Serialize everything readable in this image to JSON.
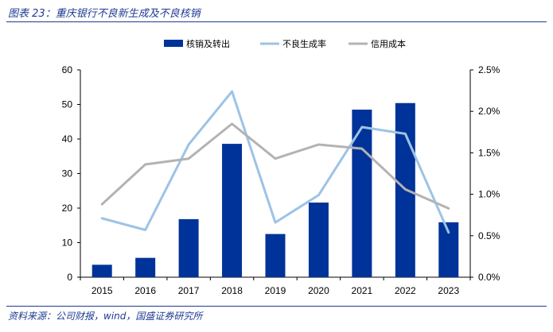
{
  "header": {
    "title": "图表 23：重庆银行不良新生成及不良核销"
  },
  "footer": {
    "source": "资料来源：公司财报，wind，国盛证券研究所"
  },
  "chart_data": {
    "type": "bar",
    "categories": [
      "2015",
      "2016",
      "2017",
      "2018",
      "2019",
      "2020",
      "2021",
      "2022",
      "2023"
    ],
    "series": [
      {
        "name": "核销及转出",
        "type": "bar",
        "axis": "left",
        "color": "#003399",
        "values": [
          3.6,
          5.6,
          16.8,
          38.6,
          12.5,
          21.6,
          48.5,
          50.4,
          15.9
        ]
      },
      {
        "name": "不良生成率",
        "type": "line",
        "axis": "right",
        "color": "#9dc3e6",
        "values": [
          0.71,
          0.57,
          1.6,
          2.24,
          0.66,
          0.99,
          1.81,
          1.73,
          0.54
        ]
      },
      {
        "name": "信用成本",
        "type": "line",
        "axis": "right",
        "color": "#b3b3b3",
        "values": [
          0.88,
          1.36,
          1.43,
          1.85,
          1.43,
          1.6,
          1.55,
          1.06,
          0.83
        ]
      }
    ],
    "y_left": {
      "min": 0,
      "max": 60,
      "ticks": [
        0,
        10,
        20,
        30,
        40,
        50,
        60
      ]
    },
    "y_right": {
      "min": 0,
      "max": 2.5,
      "ticks": [
        "0.0%",
        "0.5%",
        "1.0%",
        "1.5%",
        "2.0%",
        "2.5%"
      ]
    },
    "legend": "top",
    "grid": false
  }
}
